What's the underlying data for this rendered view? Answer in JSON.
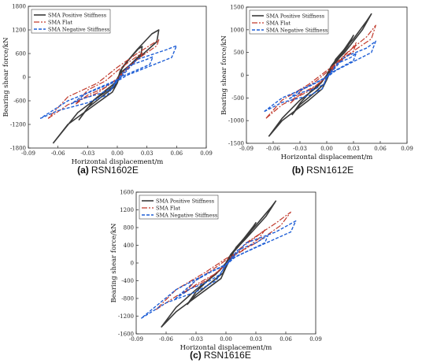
{
  "colors": {
    "positive": "#3a3a3a",
    "flat": "#c0392b",
    "negative": "#1f5fd6",
    "axis": "#222222"
  },
  "chart_data": [
    {
      "type": "line",
      "caption_label": "(a)",
      "caption_name": "RSN1602E",
      "xlabel": "Horizontal displacement/m",
      "ylabel": "Bearing shear force/kN",
      "xlim": [
        -0.09,
        0.09
      ],
      "ylim": [
        -1800,
        1800
      ],
      "xticks": [
        -0.09,
        -0.06,
        -0.03,
        0,
        0.03,
        0.06,
        0.09
      ],
      "xtick_labels": [
        "-0.09",
        "-0.06",
        "-0.03",
        "0.00",
        "0.03",
        "0.06",
        "0.09"
      ],
      "yticks": [
        -1800,
        -1200,
        -600,
        0,
        600,
        1200,
        1800
      ],
      "ytick_labels": [
        "-1800",
        "-1200",
        "-600",
        "0",
        "600",
        "1200",
        "1800"
      ],
      "legend_position": "top-left",
      "series": [
        {
          "name": "SMA Positive Stiffness",
          "style": "solid",
          "x": [
            -0.065,
            -0.05,
            -0.02,
            -0.005,
            0,
            0.005,
            0.02,
            0.035,
            0.042,
            0.04,
            0.02,
            0.005,
            0,
            -0.005,
            -0.02,
            -0.04,
            -0.065
          ],
          "y": [
            -1680,
            -1200,
            -650,
            -380,
            -150,
            250,
            700,
            1100,
            1200,
            900,
            450,
            150,
            -50,
            -250,
            -520,
            -900,
            -1680
          ]
        },
        {
          "name": "SMA Flat",
          "style": "dashdot",
          "x": [
            -0.07,
            -0.05,
            -0.02,
            0,
            0.02,
            0.04,
            0.042,
            0.02,
            0.0,
            -0.02,
            -0.05,
            -0.07
          ],
          "y": [
            -1050,
            -700,
            -400,
            -50,
            450,
            800,
            950,
            600,
            250,
            -150,
            -500,
            -1050
          ]
        },
        {
          "name": "SMA Negative Stiffness",
          "style": "dashed",
          "x": [
            -0.078,
            -0.06,
            -0.03,
            -0.01,
            0.0,
            0.02,
            0.05,
            0.06,
            0.055,
            0.03,
            0.01,
            0.0,
            -0.02,
            -0.05,
            -0.078
          ],
          "y": [
            -1050,
            -850,
            -650,
            -450,
            -100,
            450,
            700,
            800,
            500,
            250,
            50,
            -100,
            -300,
            -600,
            -1050
          ]
        }
      ]
    },
    {
      "type": "line",
      "caption_label": "(b)",
      "caption_name": "RSN1612E",
      "xlabel": "Horizontal displacement/m",
      "ylabel": "Bearing shear force/kN",
      "xlim": [
        -0.09,
        0.09
      ],
      "ylim": [
        -1500,
        1500
      ],
      "xticks": [
        -0.09,
        -0.06,
        -0.03,
        0,
        0.03,
        0.06,
        0.09
      ],
      "xtick_labels": [
        "-0.09",
        "-0.06",
        "-0.03",
        "0.00",
        "0.03",
        "0.06",
        "0.09"
      ],
      "yticks": [
        -1500,
        -1000,
        -500,
        0,
        500,
        1000,
        1500
      ],
      "ytick_labels": [
        "-1500",
        "-1000",
        "-500",
        "0",
        "500",
        "1000",
        "1500"
      ],
      "legend_position": "top-left",
      "series": [
        {
          "name": "SMA Positive Stiffness",
          "style": "solid",
          "x": [
            -0.065,
            -0.05,
            -0.02,
            -0.005,
            0,
            0.01,
            0.03,
            0.045,
            0.05,
            0.04,
            0.02,
            0.005,
            0,
            -0.01,
            -0.03,
            -0.05,
            -0.065
          ],
          "y": [
            -1350,
            -1000,
            -550,
            -300,
            -100,
            350,
            800,
            1200,
            1350,
            1000,
            500,
            200,
            0,
            -250,
            -550,
            -950,
            -1350
          ]
        },
        {
          "name": "SMA Flat",
          "style": "dashdot",
          "x": [
            -0.068,
            -0.05,
            -0.02,
            0,
            0.02,
            0.045,
            0.055,
            0.05,
            0.02,
            0.0,
            -0.02,
            -0.05,
            -0.068
          ],
          "y": [
            -950,
            -650,
            -350,
            -50,
            450,
            850,
            1100,
            800,
            400,
            100,
            -200,
            -550,
            -950
          ]
        },
        {
          "name": "SMA Negative Stiffness",
          "style": "dashed",
          "x": [
            -0.07,
            -0.05,
            -0.02,
            -0.005,
            0.0,
            0.02,
            0.045,
            0.055,
            0.05,
            0.03,
            0.01,
            0.0,
            -0.02,
            -0.05,
            -0.07
          ],
          "y": [
            -800,
            -600,
            -450,
            -300,
            -50,
            400,
            600,
            750,
            500,
            300,
            100,
            -50,
            -250,
            -500,
            -800
          ]
        }
      ]
    },
    {
      "type": "line",
      "caption_label": "(c)",
      "caption_name": "RSN1616E",
      "xlabel": "Horizontal displacement/m",
      "ylabel": "Bearing shear force/kN",
      "xlim": [
        -0.09,
        0.09
      ],
      "ylim": [
        -1600,
        1600
      ],
      "xticks": [
        -0.09,
        -0.06,
        -0.03,
        0,
        0.03,
        0.06,
        0.09
      ],
      "xtick_labels": [
        "-0.09",
        "-0.06",
        "-0.03",
        "0.00",
        "0.03",
        "0.06",
        "0.09"
      ],
      "yticks": [
        -1600,
        -1200,
        -800,
        -400,
        0,
        400,
        800,
        1200,
        1600
      ],
      "ytick_labels": [
        "-1600",
        "-1200",
        "-800",
        "-400",
        "0",
        "400",
        "800",
        "1200",
        "1600"
      ],
      "legend_position": "top-left",
      "series": [
        {
          "name": "SMA Positive Stiffness",
          "style": "solid",
          "x": [
            -0.065,
            -0.05,
            -0.02,
            -0.005,
            0,
            0.01,
            0.03,
            0.045,
            0.05,
            0.04,
            0.02,
            0.005,
            0,
            -0.01,
            -0.03,
            -0.05,
            -0.065
          ],
          "y": [
            -1450,
            -1100,
            -600,
            -350,
            -100,
            350,
            850,
            1250,
            1400,
            1050,
            550,
            200,
            0,
            -250,
            -600,
            -1000,
            -1450
          ]
        },
        {
          "name": "SMA Flat",
          "style": "dashdot",
          "x": [
            -0.07,
            -0.05,
            -0.02,
            0,
            0.02,
            0.05,
            0.065,
            0.055,
            0.03,
            0.0,
            -0.02,
            -0.05,
            -0.07
          ],
          "y": [
            -1050,
            -750,
            -400,
            -50,
            450,
            900,
            1150,
            850,
            450,
            100,
            -200,
            -600,
            -1050
          ]
        },
        {
          "name": "SMA Negative Stiffness",
          "style": "dashed",
          "x": [
            -0.085,
            -0.06,
            -0.03,
            -0.01,
            0.0,
            0.02,
            0.05,
            0.07,
            0.065,
            0.04,
            0.01,
            0.0,
            -0.02,
            -0.05,
            -0.085
          ],
          "y": [
            -1250,
            -900,
            -650,
            -400,
            -50,
            450,
            700,
            950,
            700,
            450,
            150,
            -50,
            -250,
            -600,
            -1250
          ]
        }
      ]
    }
  ]
}
